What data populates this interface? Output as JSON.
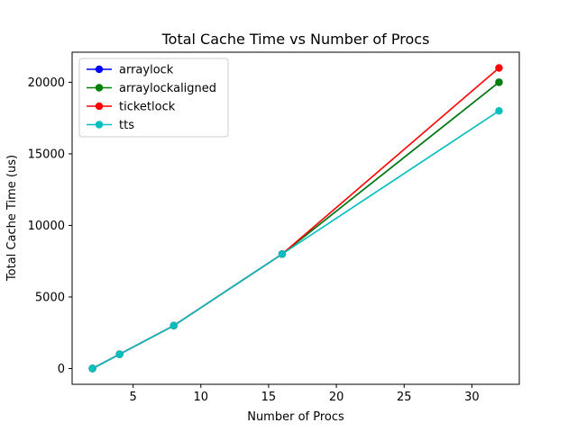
{
  "chart_data": {
    "type": "line",
    "title": "Total Cache Time vs Number of Procs",
    "xlabel": "Number of Procs",
    "ylabel": "Total Cache Time (us)",
    "xlim": [
      0.5,
      33.5
    ],
    "ylim": [
      -1100,
      22100
    ],
    "xticks": [
      5,
      10,
      15,
      20,
      25,
      30
    ],
    "yticks": [
      0,
      5000,
      10000,
      15000,
      20000
    ],
    "x": [
      2,
      4,
      8,
      16,
      32
    ],
    "legend_position": "upper-left",
    "grid": false,
    "series": [
      {
        "name": "arraylock",
        "color": "#0000ff",
        "values": [
          0,
          1000,
          3000,
          8000,
          20000
        ]
      },
      {
        "name": "arraylockaligned",
        "color": "#008000",
        "values": [
          0,
          1000,
          3000,
          8000,
          20000
        ]
      },
      {
        "name": "ticketlock",
        "color": "#ff0000",
        "values": [
          0,
          1000,
          3000,
          8000,
          21000
        ]
      },
      {
        "name": "tts",
        "color": "#00bfbf",
        "values": [
          0,
          1000,
          3000,
          8000,
          18000
        ]
      }
    ]
  }
}
